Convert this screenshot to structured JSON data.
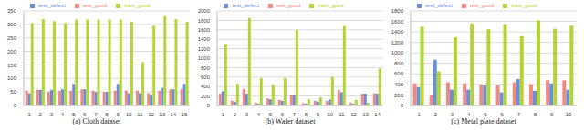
{
  "chart_data": [
    {
      "type": "bar",
      "title": "(a) Cloth dataset",
      "categories": [
        "1",
        "2",
        "3",
        "4",
        "5",
        "6",
        "7",
        "8",
        "9",
        "10",
        "11",
        "12",
        "13",
        "14",
        "15"
      ],
      "series": [
        {
          "name": "test_good",
          "color": "#f08a80",
          "values": [
            55,
            58,
            50,
            55,
            55,
            60,
            55,
            50,
            55,
            55,
            55,
            45,
            55,
            60,
            60
          ]
        },
        {
          "name": "test_defect",
          "color": "#6a8fd8",
          "values": [
            45,
            58,
            58,
            60,
            80,
            60,
            50,
            50,
            80,
            45,
            45,
            40,
            65,
            60,
            80
          ]
        },
        {
          "name": "train_good",
          "color": "#b4d334",
          "values": [
            305,
            320,
            312,
            305,
            318,
            318,
            318,
            318,
            318,
            310,
            160,
            295,
            330,
            320,
            310
          ]
        }
      ],
      "ylim": [
        0,
        350
      ],
      "yticks": [
        0,
        50,
        100,
        150,
        200,
        250,
        300,
        350
      ],
      "grid": true,
      "legend": "top"
    },
    {
      "type": "bar",
      "title": "(b) Wafer dataset",
      "categories": [
        "1",
        "2",
        "3",
        "4",
        "5",
        "6",
        "7",
        "8",
        "9",
        "10",
        "11",
        "12",
        "13",
        "14"
      ],
      "series": [
        {
          "name": "test_good",
          "color": "#f08a80",
          "values": [
            250,
            100,
            350,
            60,
            150,
            120,
            230,
            50,
            100,
            100,
            330,
            60,
            250,
            260
          ]
        },
        {
          "name": "test_defect",
          "color": "#6a8fd8",
          "values": [
            300,
            80,
            250,
            40,
            130,
            100,
            230,
            40,
            80,
            130,
            280,
            40,
            250,
            250
          ]
        },
        {
          "name": "train_good",
          "color": "#b4d334",
          "values": [
            1300,
            460,
            1850,
            580,
            440,
            580,
            1600,
            130,
            170,
            600,
            1680,
            120,
            60,
            780
          ]
        }
      ],
      "ylim": [
        0,
        2000
      ],
      "yticks": [
        0,
        200,
        400,
        600,
        800,
        1000,
        1200,
        1400,
        1600,
        1800,
        2000
      ],
      "grid": true,
      "legend": "top"
    },
    {
      "type": "bar",
      "title": "(c) Metal plate dataset",
      "categories": [
        "1",
        "2",
        "3",
        "4",
        "5",
        "6",
        "7",
        "8",
        "9",
        "10"
      ],
      "series": [
        {
          "name": "test_good",
          "color": "#f08a80",
          "values": [
            420,
            200,
            440,
            420,
            400,
            380,
            440,
            400,
            480,
            480
          ]
        },
        {
          "name": "test_defect",
          "color": "#6a8fd8",
          "values": [
            350,
            870,
            300,
            300,
            380,
            250,
            500,
            280,
            420,
            300
          ]
        },
        {
          "name": "train_good",
          "color": "#b4d334",
          "values": [
            1500,
            650,
            1300,
            1560,
            1450,
            1550,
            1320,
            1620,
            1460,
            1520
          ]
        }
      ],
      "ylim": [
        0,
        1800
      ],
      "yticks": [
        0,
        200,
        400,
        600,
        800,
        1000,
        1200,
        1400,
        1600,
        1800
      ],
      "grid": true,
      "legend": "top"
    }
  ]
}
